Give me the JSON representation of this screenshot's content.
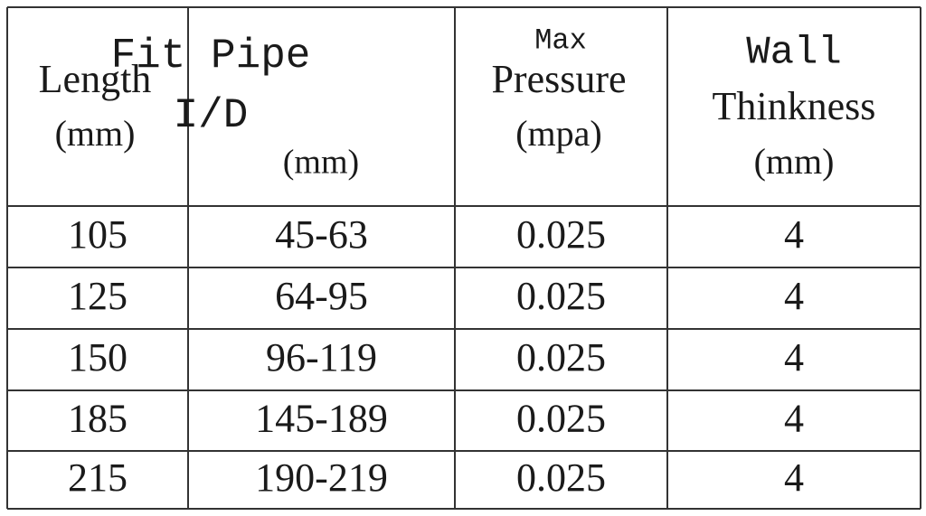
{
  "table": {
    "header": [
      [
        "Length",
        "(mm)"
      ],
      [
        "Fit Pipe",
        "I/D",
        "(mm)"
      ],
      [
        "Max",
        "Pressure",
        "(mpa)"
      ],
      [
        "Wall",
        "Thinkness",
        "(mm)"
      ]
    ],
    "rows": [
      [
        "105",
        "45-63",
        "0.025",
        "4"
      ],
      [
        "125",
        "64-95",
        "0.025",
        "4"
      ],
      [
        "150",
        "96-119",
        "0.025",
        "4"
      ],
      [
        "185",
        "145-189",
        "0.025",
        "4"
      ],
      [
        "215",
        "190-219",
        "0.025",
        "4"
      ]
    ]
  }
}
